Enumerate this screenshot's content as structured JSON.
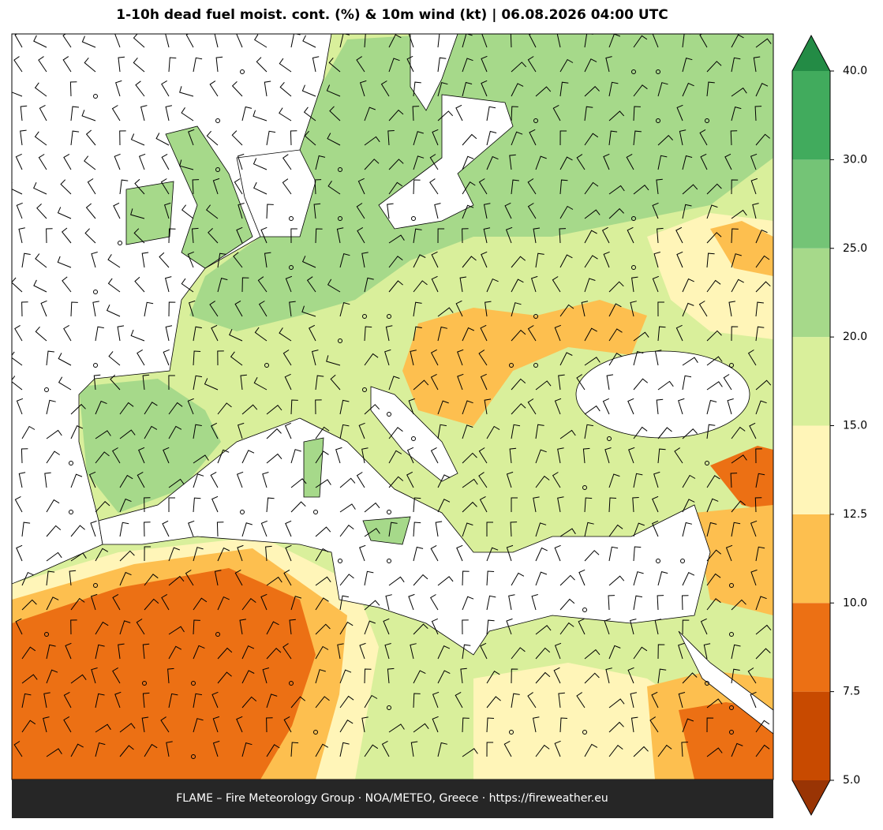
{
  "map": {
    "title": "1-10h dead fuel moist. cont. (%) & 10m wind (kt)  |  06.08.2026 04:00 UTC",
    "footer": "FLAME – Fire Meteorology Group · NOA/METEO, Greece · https://fireweather.eu",
    "colorbar": {
      "ticks": [
        {
          "value": 5,
          "label": "5.0"
        },
        7.5,
        {
          "value": 10,
          "label": "10.0"
        },
        12.5,
        {
          "value": 15,
          "label": "15.0"
        },
        {
          "value": 20,
          "label": "20.0"
        },
        {
          "value": 25,
          "label": "25.0"
        },
        {
          "value": 30,
          "label": "30.0"
        },
        {
          "value": 40,
          "label": "40.0"
        }
      ],
      "colors": [
        "#c84a00",
        "#ec7014",
        "#fdbf4f",
        "#fff5b8",
        "#d9ef9b",
        "#a6d98a",
        "#74c476",
        "#41ab5d"
      ],
      "under_color": "#993404",
      "over_color": "#238b45"
    }
  }
}
